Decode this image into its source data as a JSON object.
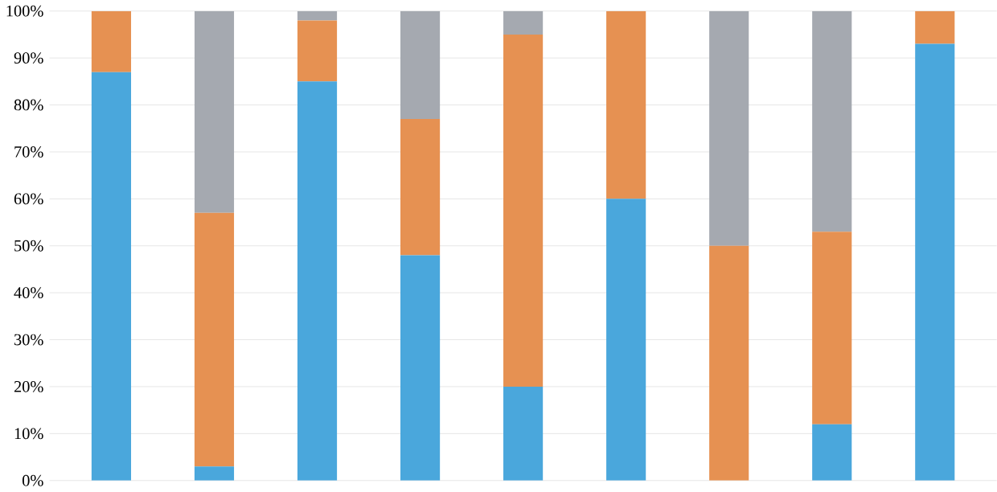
{
  "chart_data": {
    "type": "bar",
    "stacked": true,
    "categories": [
      null,
      null,
      null,
      null,
      null,
      null,
      null,
      null,
      null
    ],
    "series": [
      {
        "color": "#4aa7dc",
        "values": [
          87,
          3,
          85,
          48,
          20,
          60,
          0,
          12,
          93
        ]
      },
      {
        "color": "#e69152",
        "values": [
          13,
          54,
          13,
          29,
          75,
          40,
          50,
          41,
          7
        ]
      },
      {
        "color": "#a5a9b0",
        "values": [
          0,
          43,
          2,
          23,
          5,
          0,
          50,
          47,
          0
        ]
      }
    ],
    "ylim": [
      0,
      100
    ],
    "yticks": [
      {
        "value": 0,
        "label": "0%"
      },
      {
        "value": 10,
        "label": "10%"
      },
      {
        "value": 20,
        "label": "20%"
      },
      {
        "value": 30,
        "label": "30%"
      },
      {
        "value": 40,
        "label": "40%"
      },
      {
        "value": 50,
        "label": "50%"
      },
      {
        "value": 60,
        "label": "60%"
      },
      {
        "value": 70,
        "label": "70%"
      },
      {
        "value": 80,
        "label": "80%"
      },
      {
        "value": 90,
        "label": "90%"
      },
      {
        "value": 100,
        "label": "100%"
      }
    ],
    "grid": "y",
    "tick_labels": "y"
  }
}
